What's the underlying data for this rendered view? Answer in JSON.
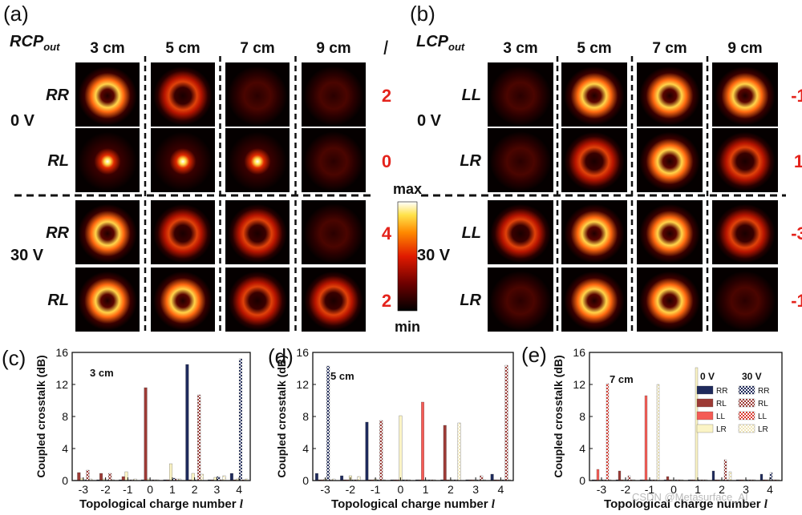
{
  "figure": {
    "panel_a": {
      "label": "(a)",
      "pol_base": "RCP",
      "pol_sub": "out",
      "distances": [
        "3 cm",
        "5 cm",
        "7 cm",
        "9 cm"
      ],
      "l_symbol": "l",
      "voltages": [
        "0 V",
        "30 V"
      ],
      "rows": [
        {
          "name": "RR",
          "l": "2"
        },
        {
          "name": "RL",
          "l": "0"
        },
        {
          "name": "RR",
          "l": "4"
        },
        {
          "name": "RL",
          "l": "2"
        }
      ]
    },
    "panel_b": {
      "label": "(b)",
      "pol_base": "LCP",
      "pol_sub": "out",
      "distances": [
        "3 cm",
        "5 cm",
        "7 cm",
        "9 cm"
      ],
      "voltages": [
        "0 V",
        "30 V"
      ],
      "rows": [
        {
          "name": "LL",
          "l": "-1"
        },
        {
          "name": "LR",
          "l": "1"
        },
        {
          "name": "LL",
          "l": "-3"
        },
        {
          "name": "LR",
          "l": "-1"
        }
      ]
    },
    "colorbar": {
      "max_label": "max",
      "min_label": "min"
    },
    "watermark": "CSDN @Metasurface_AI_"
  },
  "colors": {
    "RR_0V": "#1e2a5c",
    "RL_0V": "#9c3a35",
    "LL_0V": "#f45b55",
    "LR_0V": "#fbf4c5",
    "RR_30V": "#1e2a5c",
    "RL_30V": "#9c3a35",
    "LL_30V": "#dd3a30",
    "LR_30V": "#f0e6b8",
    "l_label": "#e4231c"
  },
  "chart_data": [
    {
      "type": "bar",
      "panel_label": "(c)",
      "annotation": "3 cm",
      "xlabel_text": "Topological charge number",
      "xlabel_symbol": "l",
      "ylabel": "Coupled crosstalk (dB)",
      "categories": [
        "-3",
        "-2",
        "-1",
        "0",
        "1",
        "2",
        "3",
        "4"
      ],
      "ylim": [
        0,
        16
      ],
      "yticks": [
        "0",
        "4",
        "8",
        "12",
        "16"
      ],
      "series": [
        {
          "name": "RR",
          "voltage": "0 V",
          "hatched": false,
          "values": [
            0.05,
            0.1,
            0.1,
            0.1,
            0.1,
            14.5,
            0.1,
            0.9
          ]
        },
        {
          "name": "RL",
          "voltage": "0 V",
          "hatched": false,
          "values": [
            1.0,
            0.9,
            0.5,
            11.6,
            0.1,
            0.1,
            0.1,
            0.1
          ]
        },
        {
          "name": "LL",
          "voltage": "0 V",
          "hatched": false,
          "values": [
            0,
            0,
            0,
            0,
            0,
            0,
            0,
            0
          ]
        },
        {
          "name": "LR",
          "voltage": "0 V",
          "hatched": false,
          "values": [
            0.3,
            0.2,
            1.1,
            0.2,
            2.1,
            0.9,
            0.4,
            0.2
          ]
        },
        {
          "name": "RR",
          "voltage": "30 V",
          "hatched": true,
          "values": [
            0.1,
            0.1,
            0.1,
            0.1,
            0.3,
            0.1,
            0.5,
            15.2
          ]
        },
        {
          "name": "RL",
          "voltage": "30 V",
          "hatched": true,
          "values": [
            1.3,
            0.9,
            0.1,
            0.1,
            0.2,
            10.7,
            0.1,
            0.1
          ]
        },
        {
          "name": "LL",
          "voltage": "30 V",
          "hatched": true,
          "values": [
            0,
            0,
            0,
            0,
            0,
            0,
            0,
            0
          ]
        },
        {
          "name": "LR",
          "voltage": "30 V",
          "hatched": true,
          "values": [
            0.2,
            0.1,
            0.2,
            0.1,
            0.2,
            0.8,
            0.6,
            0.2
          ]
        }
      ]
    },
    {
      "type": "bar",
      "panel_label": "(d)",
      "annotation": "5 cm",
      "xlabel_text": "Topological charge number",
      "xlabel_symbol": "l",
      "ylabel": "Coupled crosstalk (dB)",
      "categories": [
        "-3",
        "-2",
        "-1",
        "0",
        "1",
        "2",
        "3",
        "4"
      ],
      "ylim": [
        0,
        16
      ],
      "yticks": [
        "0",
        "4",
        "8",
        "12",
        "16"
      ],
      "series": [
        {
          "name": "RR",
          "voltage": "0 V",
          "hatched": false,
          "values": [
            0.9,
            0.6,
            7.3,
            0.1,
            0.1,
            0.1,
            0.1,
            0.8
          ]
        },
        {
          "name": "RL",
          "voltage": "0 V",
          "hatched": false,
          "values": [
            0.1,
            0.1,
            0.1,
            0.1,
            0.1,
            6.9,
            0.1,
            0.1
          ]
        },
        {
          "name": "LL",
          "voltage": "0 V",
          "hatched": false,
          "values": [
            0.1,
            0.1,
            0.1,
            0.1,
            9.8,
            0.1,
            0.1,
            0.1
          ]
        },
        {
          "name": "LR",
          "voltage": "0 V",
          "hatched": false,
          "values": [
            0.2,
            0.6,
            0.2,
            8.1,
            0.1,
            0.1,
            0.1,
            0.1
          ]
        },
        {
          "name": "RR",
          "voltage": "30 V",
          "hatched": true,
          "values": [
            14.3,
            0.1,
            0.1,
            0.1,
            0.1,
            0.1,
            0.1,
            0.1
          ]
        },
        {
          "name": "RL",
          "voltage": "30 V",
          "hatched": true,
          "values": [
            0.1,
            0.1,
            7.5,
            0.1,
            0.1,
            0.1,
            0.6,
            14.4
          ]
        },
        {
          "name": "LL",
          "voltage": "30 V",
          "hatched": true,
          "values": [
            0,
            0,
            0,
            0,
            0,
            0,
            0,
            0
          ]
        },
        {
          "name": "LR",
          "voltage": "30 V",
          "hatched": true,
          "values": [
            0.2,
            0.5,
            0.1,
            0.1,
            0.1,
            7.2,
            0.1,
            0.1
          ]
        }
      ]
    },
    {
      "type": "bar",
      "panel_label": "(e)",
      "annotation": "7 cm",
      "xlabel_text": "Topological charge number",
      "xlabel_symbol": "l",
      "ylabel": "Coupled crosstalk (dB)",
      "categories": [
        "-3",
        "-2",
        "-1",
        "0",
        "1",
        "2",
        "3",
        "4"
      ],
      "ylim": [
        0,
        16
      ],
      "yticks": [
        "0",
        "4",
        "8",
        "12",
        "16"
      ],
      "legend": {
        "header_0V": "0 V",
        "header_30V": "30 V",
        "entries": [
          "RR",
          "RL",
          "LL",
          "LR"
        ]
      },
      "series": [
        {
          "name": "RR",
          "voltage": "0 V",
          "hatched": false,
          "values": [
            0.1,
            0.1,
            0.1,
            0.1,
            0.1,
            1.2,
            0.1,
            0.8
          ]
        },
        {
          "name": "RL",
          "voltage": "0 V",
          "hatched": false,
          "values": [
            0.1,
            1.2,
            0.1,
            0.5,
            0.1,
            0.1,
            0.1,
            0.1
          ]
        },
        {
          "name": "LL",
          "voltage": "0 V",
          "hatched": false,
          "values": [
            1.4,
            0.1,
            10.6,
            0.1,
            0.1,
            0.1,
            0.1,
            0.1
          ]
        },
        {
          "name": "LR",
          "voltage": "0 V",
          "hatched": false,
          "values": [
            0.1,
            0.1,
            0.1,
            0.1,
            14.1,
            0.1,
            0.1,
            0.1
          ]
        },
        {
          "name": "RR",
          "voltage": "30 V",
          "hatched": true,
          "values": [
            0.1,
            0.1,
            0.1,
            0.1,
            0.1,
            0.1,
            0.1,
            1.0
          ]
        },
        {
          "name": "RL",
          "voltage": "30 V",
          "hatched": true,
          "values": [
            0.1,
            0.6,
            0.1,
            0.1,
            0.1,
            2.6,
            0.1,
            0.1
          ]
        },
        {
          "name": "LL",
          "voltage": "30 V",
          "hatched": true,
          "values": [
            12.1,
            0.1,
            0.1,
            0.1,
            0.1,
            0.1,
            0.1,
            0.1
          ]
        },
        {
          "name": "LR",
          "voltage": "30 V",
          "hatched": true,
          "values": [
            0.1,
            0.1,
            12.0,
            0.1,
            0.1,
            1.1,
            0.1,
            0.1
          ]
        }
      ]
    }
  ]
}
